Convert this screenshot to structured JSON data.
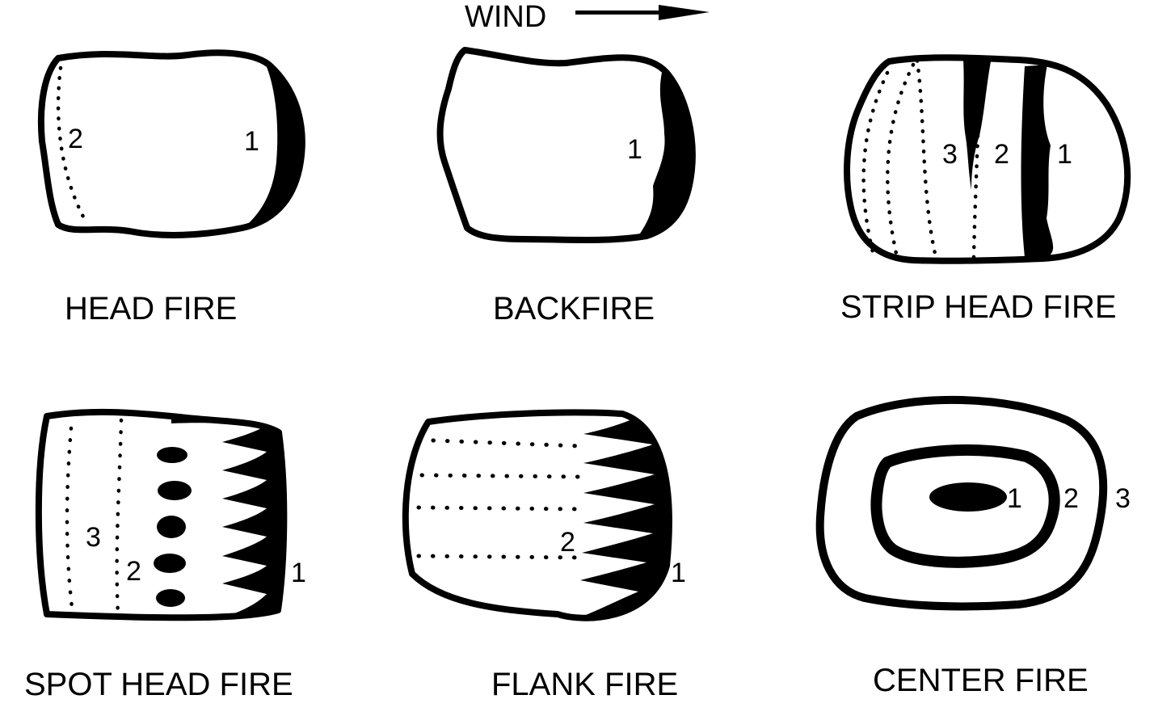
{
  "wind": {
    "label": "WIND",
    "direction": "right"
  },
  "diagrams": [
    {
      "title": "HEAD FIRE",
      "numbers": [
        "1",
        "2"
      ]
    },
    {
      "title": "BACKFIRE",
      "numbers": [
        "1"
      ]
    },
    {
      "title": "STRIP HEAD FIRE",
      "numbers": [
        "1",
        "2",
        "3"
      ]
    },
    {
      "title": "SPOT HEAD FIRE",
      "numbers": [
        "1",
        "2",
        "3"
      ]
    },
    {
      "title": "FLANK FIRE",
      "numbers": [
        "1",
        "2"
      ]
    },
    {
      "title": "CENTER FIRE",
      "numbers": [
        "1",
        "2",
        "3"
      ]
    }
  ],
  "colors": {
    "ink": "#000000",
    "paper": "#ffffff"
  }
}
